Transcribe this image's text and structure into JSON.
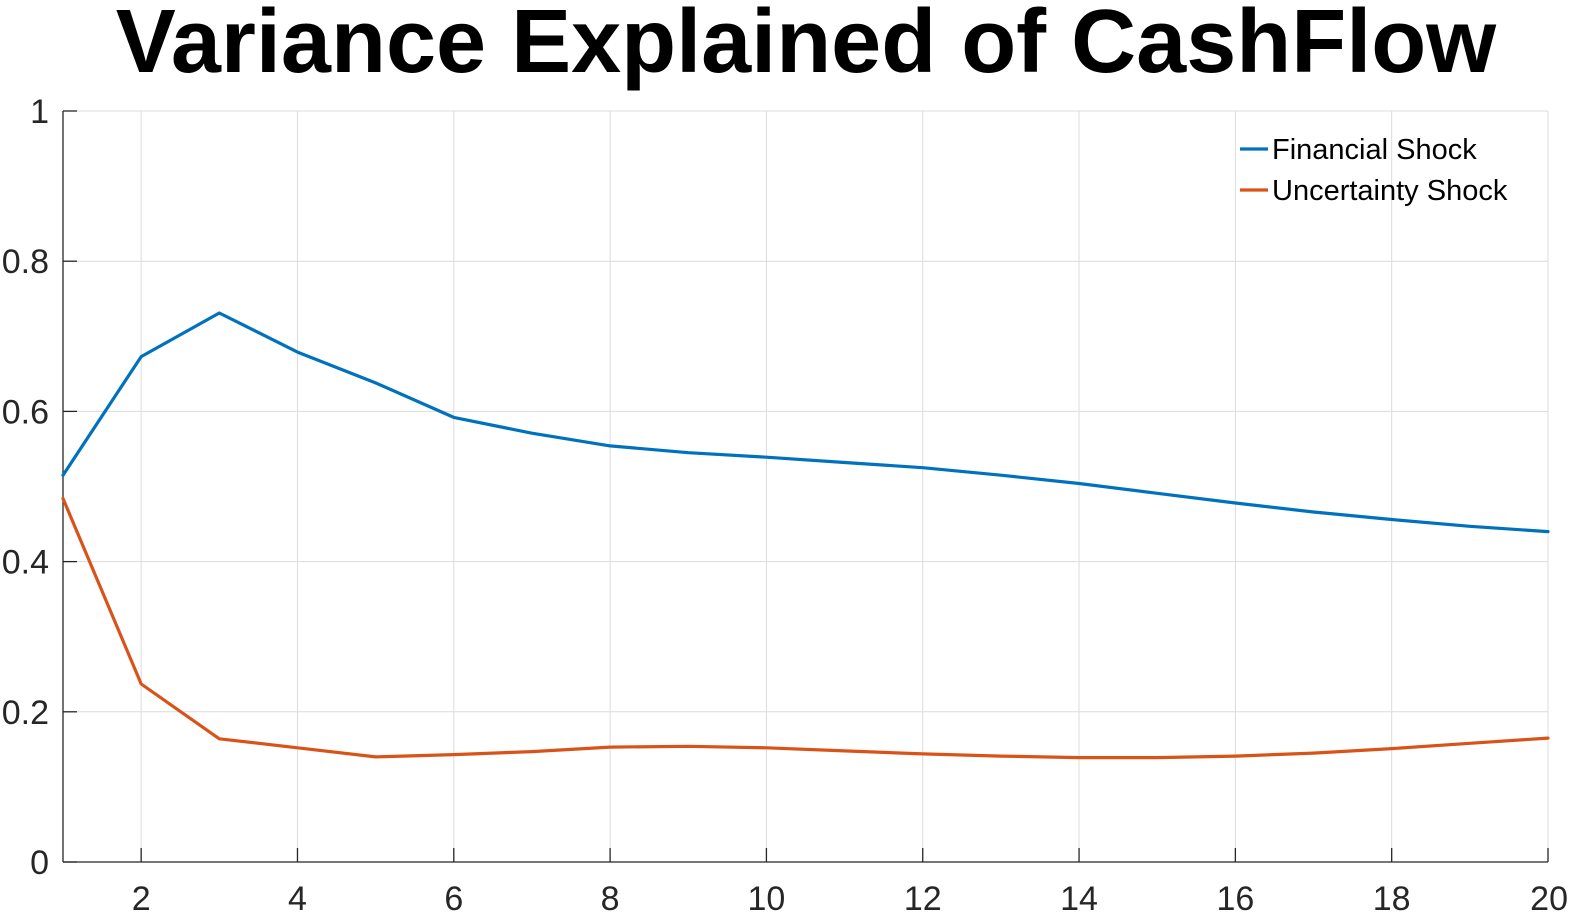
{
  "chart_data": {
    "type": "line",
    "title": "Variance Explained of CashFlow",
    "xlabel": "",
    "ylabel": "",
    "xlim": [
      1,
      20
    ],
    "ylim": [
      0,
      1
    ],
    "xticks": [
      2,
      4,
      6,
      8,
      10,
      12,
      14,
      16,
      18,
      20
    ],
    "xtick_labels": [
      "2",
      "4",
      "6",
      "8",
      "10",
      "12",
      "14",
      "16",
      "18",
      "20"
    ],
    "yticks": [
      0,
      0.2,
      0.4,
      0.6,
      0.8,
      1
    ],
    "ytick_labels": [
      "0",
      "0.2",
      "0.4",
      "0.6",
      "0.8",
      "1"
    ],
    "grid": true,
    "legend_position": "top-right",
    "x": [
      1,
      2,
      3,
      4,
      5,
      6,
      7,
      8,
      9,
      10,
      11,
      12,
      13,
      14,
      15,
      16,
      17,
      18,
      19,
      20
    ],
    "series": [
      {
        "name": "Financial Shock",
        "color": "#0072BD",
        "values": [
          0.515,
          0.673,
          0.731,
          0.679,
          0.638,
          0.592,
          0.571,
          0.554,
          0.545,
          0.539,
          0.532,
          0.525,
          0.515,
          0.504,
          0.491,
          0.478,
          0.466,
          0.456,
          0.447,
          0.44
        ]
      },
      {
        "name": "Uncertainty Shock",
        "color": "#D95319",
        "values": [
          0.484,
          0.237,
          0.164,
          0.152,
          0.14,
          0.143,
          0.147,
          0.153,
          0.154,
          0.152,
          0.148,
          0.144,
          0.141,
          0.139,
          0.139,
          0.141,
          0.145,
          0.151,
          0.158,
          0.165
        ]
      }
    ]
  }
}
